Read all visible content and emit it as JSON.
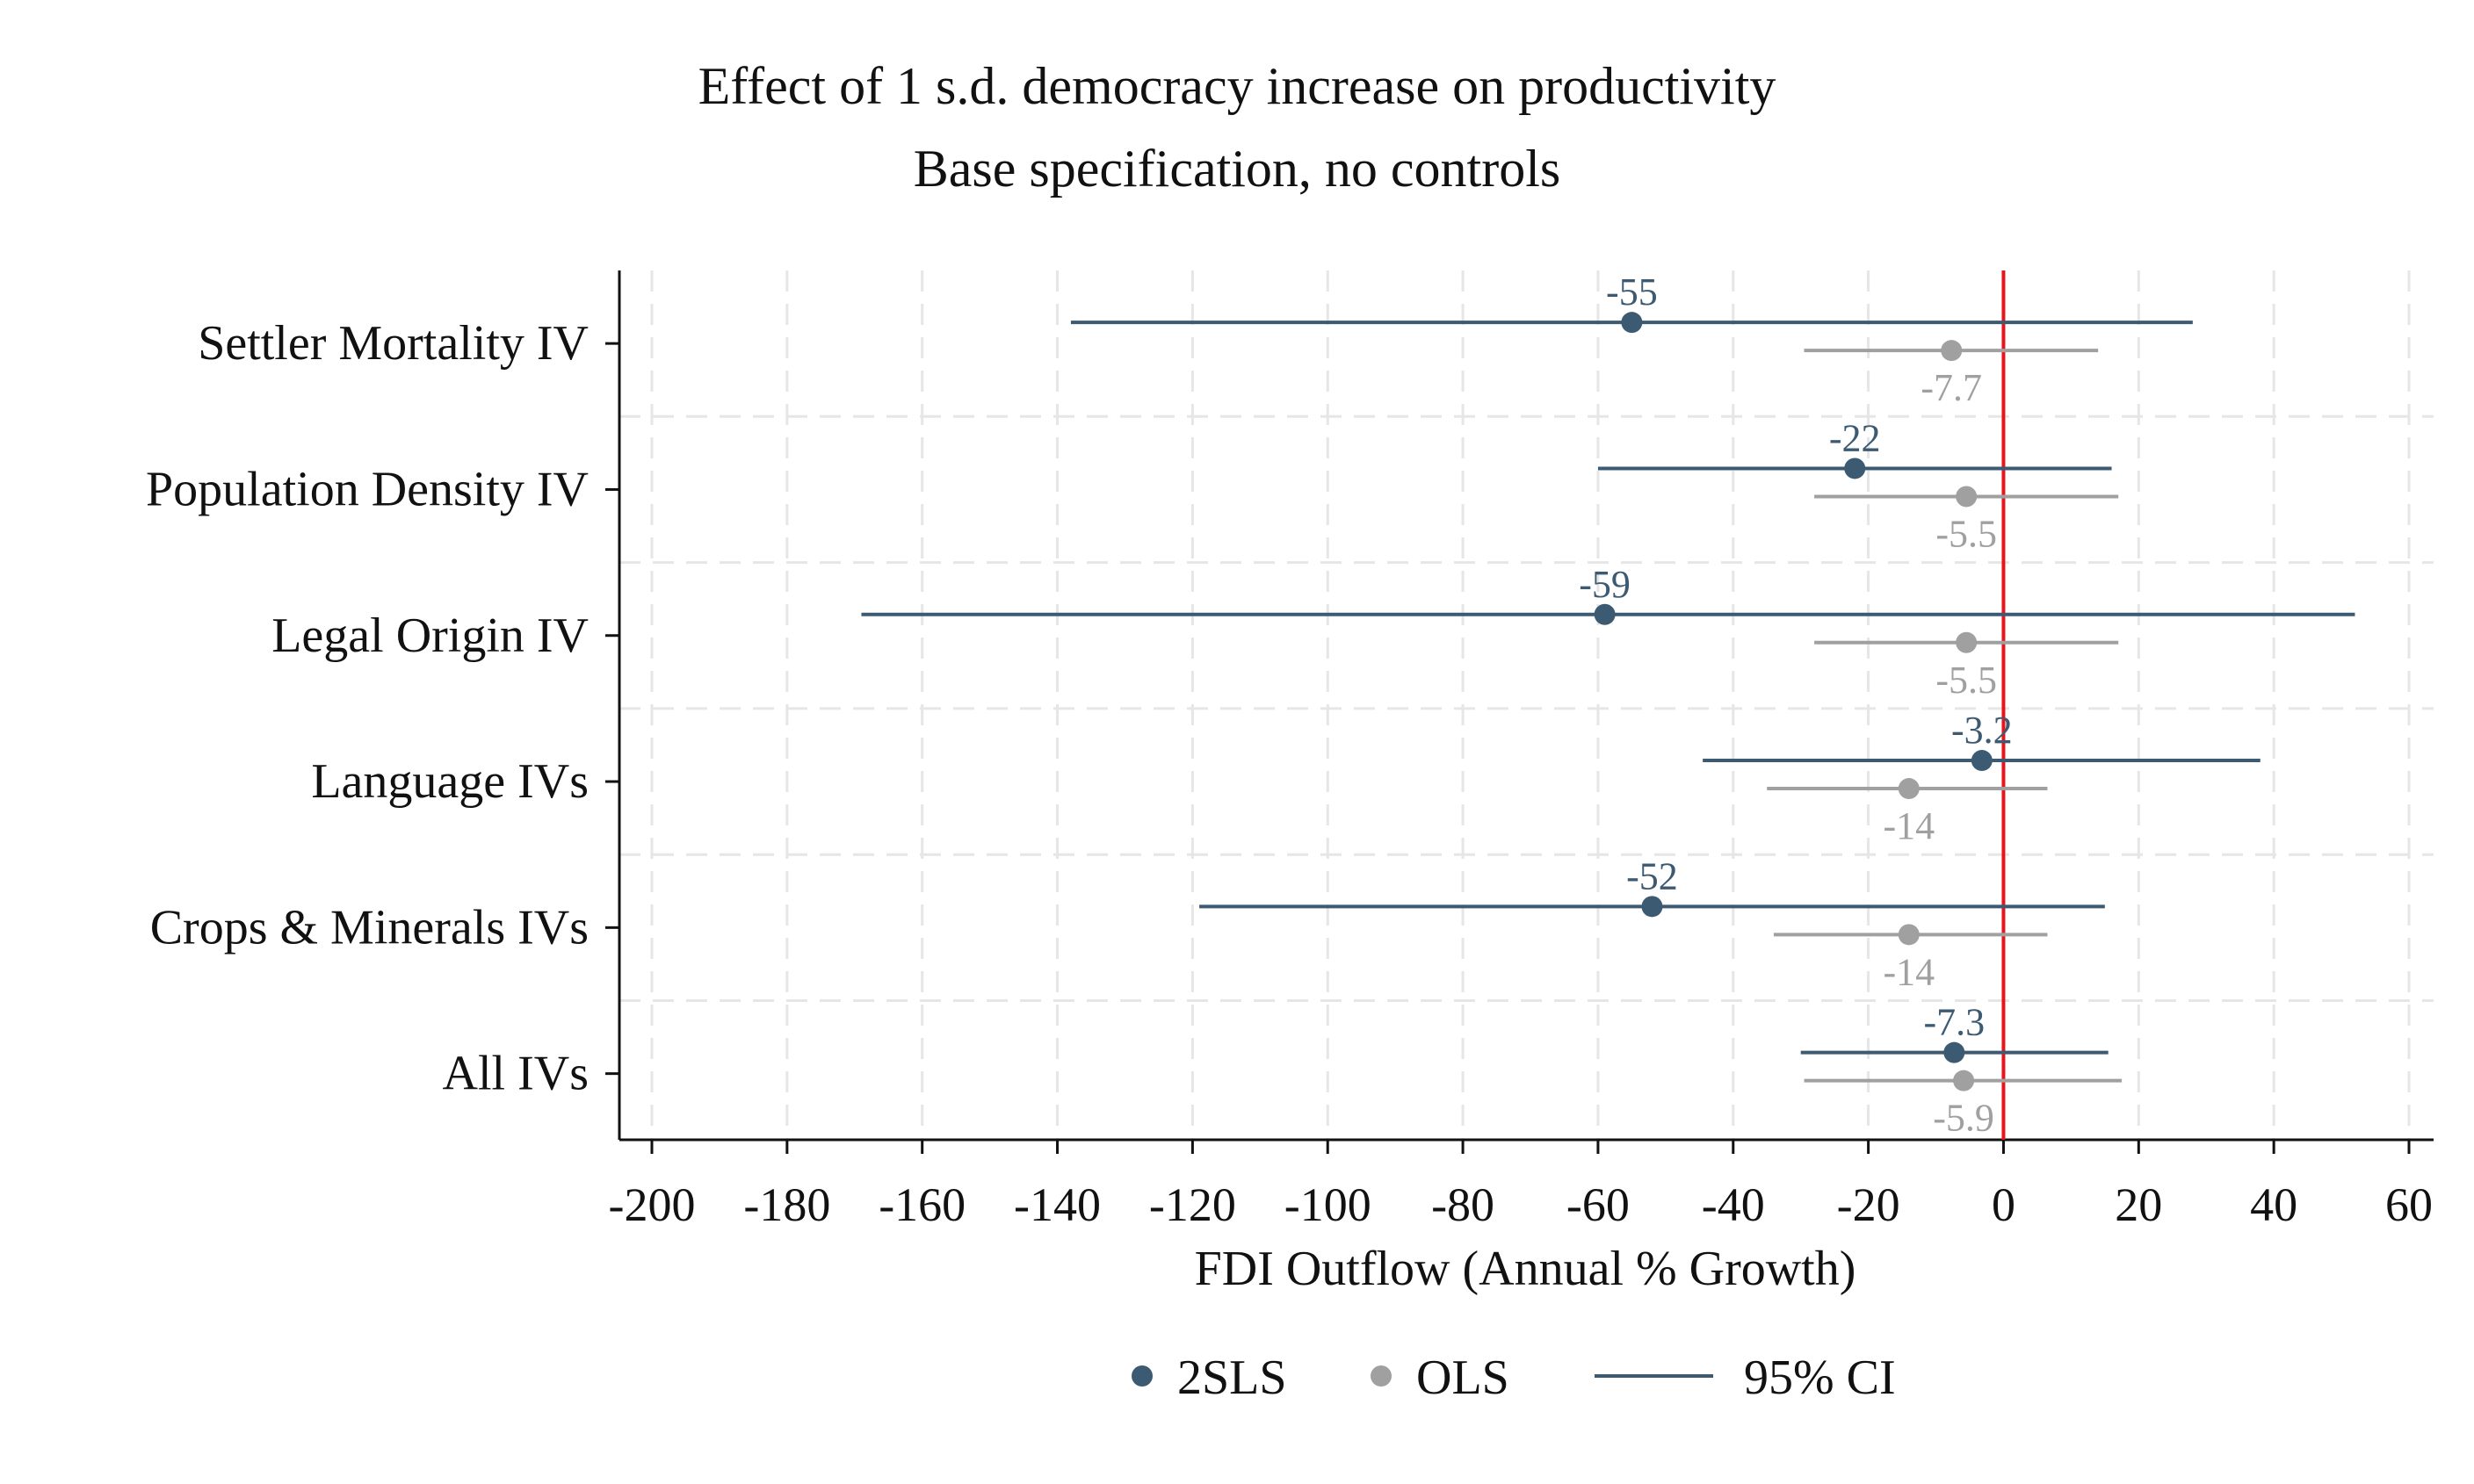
{
  "chart_data": {
    "type": "coefficient-plot",
    "title": "Effect of 1 s.d. democracy increase on productivity",
    "subtitle": "Base specification, no controls",
    "xlabel": "FDI Outflow (Annual % Growth)",
    "xlim": [
      -205,
      65
    ],
    "xticks": [
      -200,
      -180,
      -160,
      -140,
      -120,
      -100,
      -80,
      -60,
      -40,
      -20,
      0,
      20,
      40,
      60
    ],
    "reference_line": {
      "x": 0,
      "color": "#e8141c"
    },
    "grid": true,
    "legend_position": "bottom",
    "categories": [
      "Settler Mortality IV",
      "Population Density IV",
      "Legal Origin IV",
      "Language IVs",
      "Crops & Minerals IVs",
      "All IVs"
    ],
    "series": [
      {
        "name": "2SLS",
        "color": "#3d5a73",
        "points": [
          {
            "estimate": -55,
            "ci": [
              -138,
              28
            ],
            "label": "-55"
          },
          {
            "estimate": -22,
            "ci": [
              -60,
              16
            ],
            "label": "-22"
          },
          {
            "estimate": -59,
            "ci": [
              -169,
              52
            ],
            "label": "-59"
          },
          {
            "estimate": -3.2,
            "ci": [
              -44.5,
              38
            ],
            "label": "-3.2"
          },
          {
            "estimate": -52,
            "ci": [
              -119,
              15
            ],
            "label": "-52"
          },
          {
            "estimate": -7.3,
            "ci": [
              -30,
              15.5
            ],
            "label": "-7.3"
          }
        ]
      },
      {
        "name": "OLS",
        "color": "#a0a0a0",
        "points": [
          {
            "estimate": -7.7,
            "ci": [
              -29.5,
              14
            ],
            "label": "-7.7"
          },
          {
            "estimate": -5.5,
            "ci": [
              -28,
              17
            ],
            "label": "-5.5"
          },
          {
            "estimate": -5.5,
            "ci": [
              -28,
              17
            ],
            "label": "-5.5"
          },
          {
            "estimate": -14,
            "ci": [
              -35,
              6.5
            ],
            "label": "-14"
          },
          {
            "estimate": -14,
            "ci": [
              -34,
              6.5
            ],
            "label": "-14"
          },
          {
            "estimate": -5.9,
            "ci": [
              -29.5,
              17.5
            ],
            "label": "-5.9"
          }
        ]
      }
    ],
    "legend": [
      {
        "key": "2SLS",
        "symbol": "marker",
        "color": "#3d5a73"
      },
      {
        "key": "OLS",
        "symbol": "marker",
        "color": "#a0a0a0"
      },
      {
        "key": "95% CI",
        "symbol": "line",
        "color": "#3d5a73"
      }
    ]
  }
}
